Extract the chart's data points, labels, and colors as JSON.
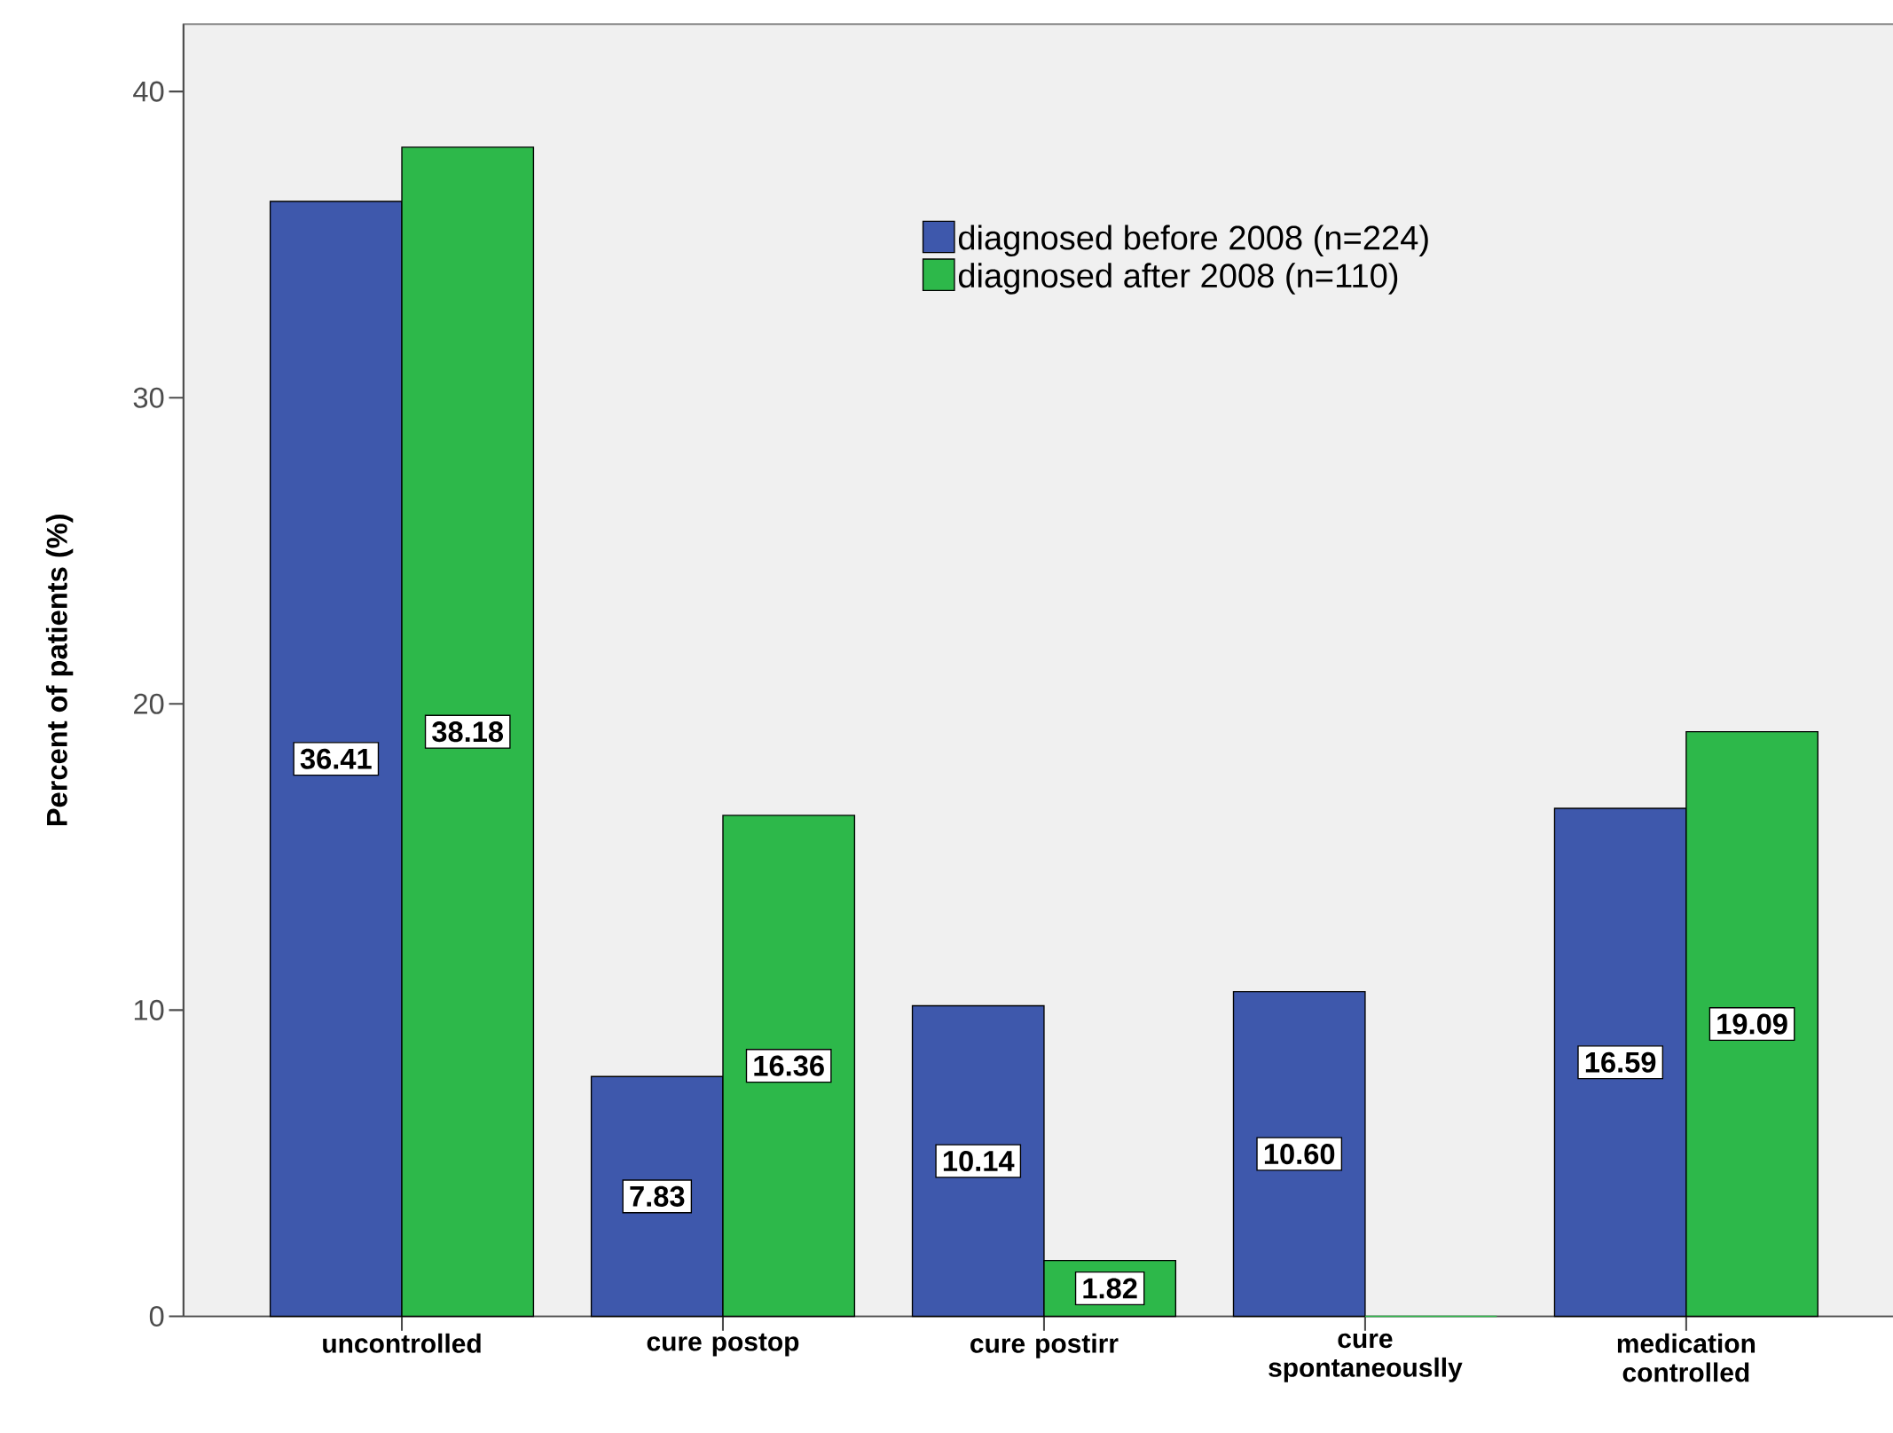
{
  "chart_data": {
    "type": "bar",
    "ylabel": "Percent of patients (%)",
    "categories": [
      "uncontrolled",
      "cure postop",
      "cure postirr",
      "cure spontaneouslly",
      "medication controlled"
    ],
    "series": [
      {
        "name": "diagnosed before 2008 (n=224)",
        "color": "#3e58ac",
        "values": [
          36.41,
          7.83,
          10.14,
          10.6,
          16.59
        ],
        "value_labels": [
          "36.41",
          "7.83",
          "10.14",
          "10.60",
          "16.59"
        ]
      },
      {
        "name": "diagnosed after 2008 (n=110)",
        "color": "#2db84a",
        "values": [
          38.18,
          16.36,
          1.82,
          0,
          19.09
        ],
        "value_labels": [
          "38.18",
          "16.36",
          "1.82",
          null,
          "19.09"
        ]
      }
    ],
    "ylim": [
      0,
      42.2
    ],
    "yticks": [
      0,
      10,
      20,
      30,
      40
    ],
    "grid": false,
    "legend": "top right"
  }
}
